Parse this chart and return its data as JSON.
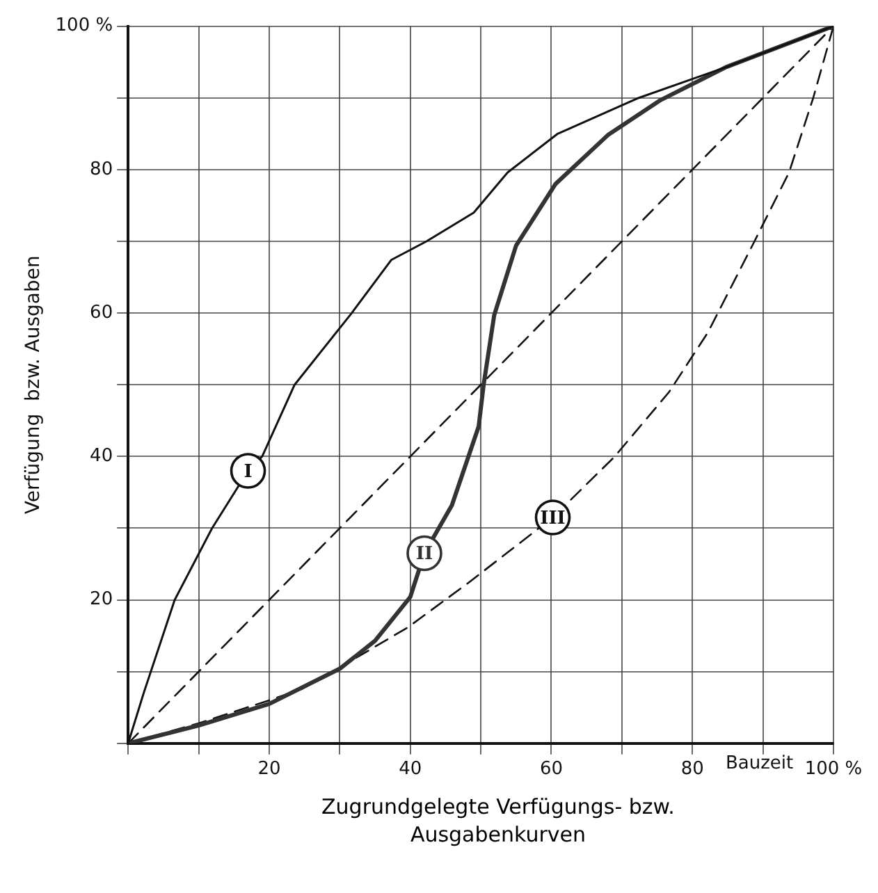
{
  "chart_data": {
    "type": "line",
    "title": "Zugrundgelegte Verfügungs- bzw. Ausgabenkurven",
    "xlabel": "Bauzeit",
    "ylabel": "Verfügung  bzw. Ausgaben",
    "series": [
      {
        "name": "I",
        "color": "#111111",
        "line_style": "solid",
        "x": [
          0,
          2.2,
          6.6,
          11.9,
          17,
          19,
          23.6,
          31.7,
          37.3,
          42.3,
          49,
          53.8,
          60.9,
          72.4,
          84.8,
          100
        ],
        "values": [
          0,
          7,
          20,
          30,
          38,
          40,
          50,
          60,
          67.4,
          70,
          74,
          79.6,
          85,
          90,
          94.3,
          100
        ]
      },
      {
        "name": "II",
        "color": "#333333",
        "line_style": "solid",
        "x": [
          0,
          10,
          20,
          30,
          35,
          40,
          42,
          45.9,
          49.7,
          50.4,
          51.9,
          55,
          60.6,
          68,
          75.5,
          84.8,
          100
        ],
        "values": [
          0,
          2.5,
          5.5,
          10.4,
          14.3,
          20.4,
          26.5,
          33.2,
          44.2,
          50,
          59.7,
          69.4,
          78,
          84.8,
          89.7,
          94.3,
          100
        ]
      },
      {
        "color": "#111111",
        "line_style": "dashed",
        "x": [
          0,
          100
        ],
        "values": [
          0,
          100
        ]
      },
      {
        "name": "III",
        "color": "#111111",
        "line_style": "dashed",
        "x": [
          0,
          10,
          20,
          24.7,
          29.7,
          39.7,
          48.4,
          60.2,
          68.9,
          76.7,
          82.2,
          88.7,
          93.7,
          97.1,
          100
        ],
        "values": [
          0,
          2.8,
          6,
          7.6,
          10.4,
          16.2,
          22.5,
          31.5,
          39.9,
          49,
          57.3,
          69.8,
          79.6,
          89.9,
          100
        ]
      }
    ],
    "xlim": [
      0,
      100
    ],
    "ylim": [
      0,
      100
    ],
    "xticks": [
      {
        "value": 0,
        "label": null
      },
      {
        "value": 10,
        "label": null
      },
      20,
      {
        "value": 30,
        "label": null
      },
      40,
      {
        "value": 50,
        "label": null
      },
      60,
      {
        "value": 70,
        "label": null
      },
      80,
      {
        "value": 90,
        "label": null
      },
      {
        "value": 100,
        "label": "100 %"
      }
    ],
    "yticks": [
      {
        "value": 0,
        "label": null
      },
      {
        "value": 10,
        "label": null
      },
      20,
      {
        "value": 30,
        "label": null
      },
      40,
      {
        "value": 50,
        "label": null
      },
      60,
      {
        "value": 70,
        "label": null
      },
      80,
      {
        "value": 90,
        "label": null
      },
      {
        "value": 100,
        "label": "100 %"
      }
    ],
    "grid": true,
    "legend": false,
    "marker": "none"
  }
}
